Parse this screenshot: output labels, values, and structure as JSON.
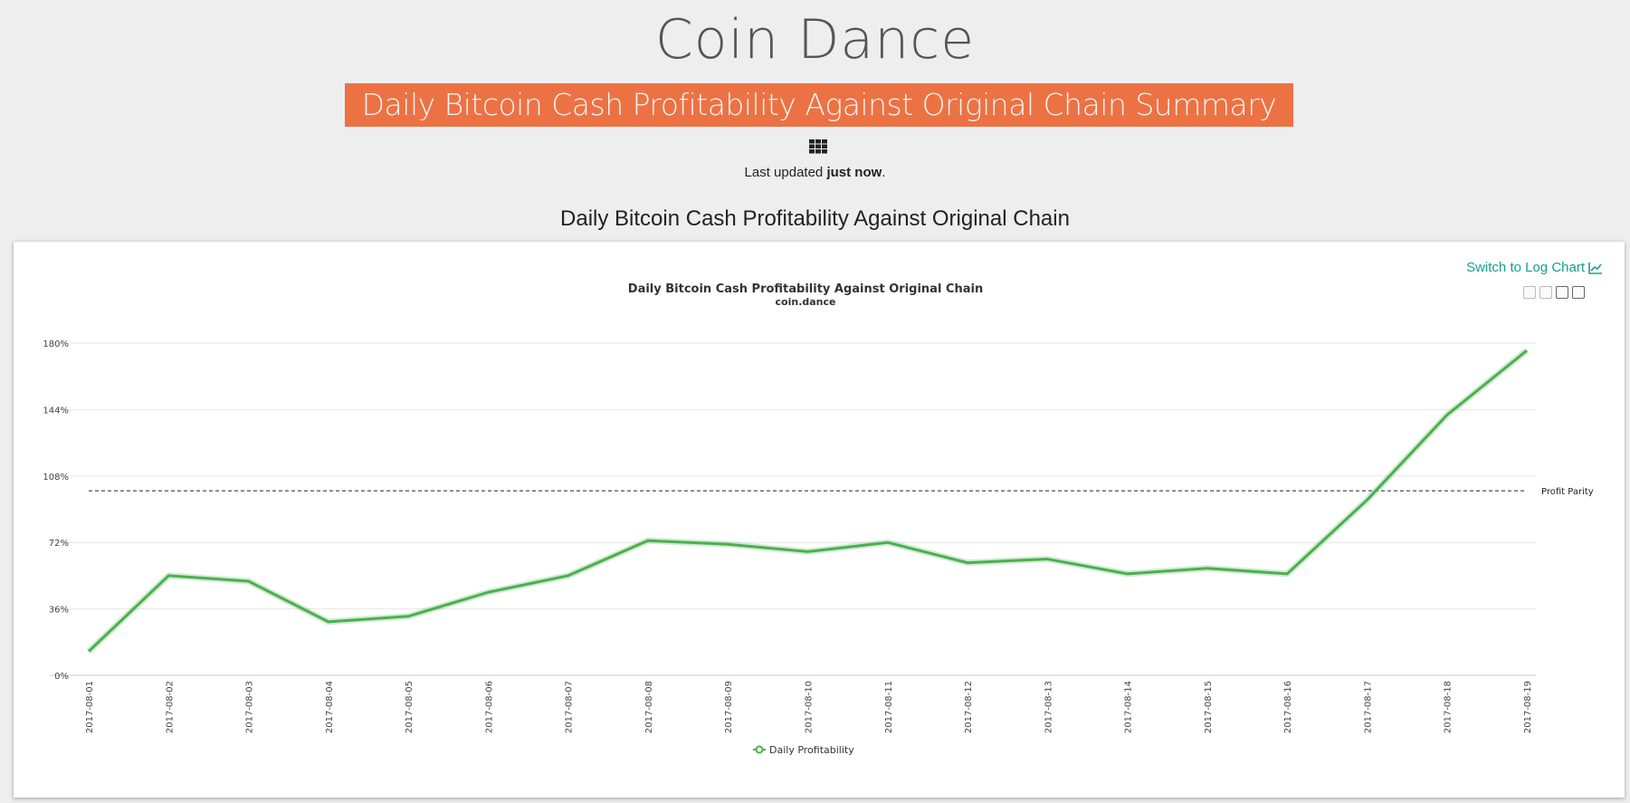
{
  "site": {
    "title": "Coin Dance"
  },
  "banner": {
    "text": "Daily Bitcoin Cash Profitability Against Original Chain Summary"
  },
  "updated": {
    "prefix": "Last updated ",
    "value": "just now",
    "suffix": "."
  },
  "section": {
    "title": "Daily Bitcoin Cash Profitability Against Original Chain"
  },
  "card": {
    "log_link": "Switch to Log Chart"
  },
  "icons": {
    "grid": "grid-icon",
    "chart_line": "line-chart-icon"
  },
  "colors": {
    "banner": "#ec7243",
    "link": "#18a08b",
    "series": "#4caf50"
  },
  "chart_data": {
    "type": "line",
    "title": "Daily Bitcoin Cash Profitability Against Original Chain",
    "subtitle": "coin.dance",
    "x": [
      "2017-08-01",
      "2017-08-02",
      "2017-08-03",
      "2017-08-04",
      "2017-08-05",
      "2017-08-06",
      "2017-08-07",
      "2017-08-08",
      "2017-08-09",
      "2017-08-10",
      "2017-08-11",
      "2017-08-12",
      "2017-08-13",
      "2017-08-14",
      "2017-08-15",
      "2017-08-16",
      "2017-08-17",
      "2017-08-18",
      "2017-08-19"
    ],
    "series": [
      {
        "name": "Daily Profitability",
        "values": [
          13,
          54,
          51,
          29,
          32,
          45,
          54,
          73,
          71,
          67,
          72,
          61,
          63,
          55,
          58,
          55,
          95,
          141,
          176
        ]
      }
    ],
    "ylim": [
      0,
      180
    ],
    "yticks": [
      "0%",
      "36%",
      "72%",
      "108%",
      "144%",
      "180%"
    ],
    "ytick_values": [
      0,
      36,
      72,
      108,
      144,
      180
    ],
    "reference_line": {
      "value": 100,
      "label": "Profit Parity"
    },
    "grid": true,
    "legend": "bottom-center"
  }
}
